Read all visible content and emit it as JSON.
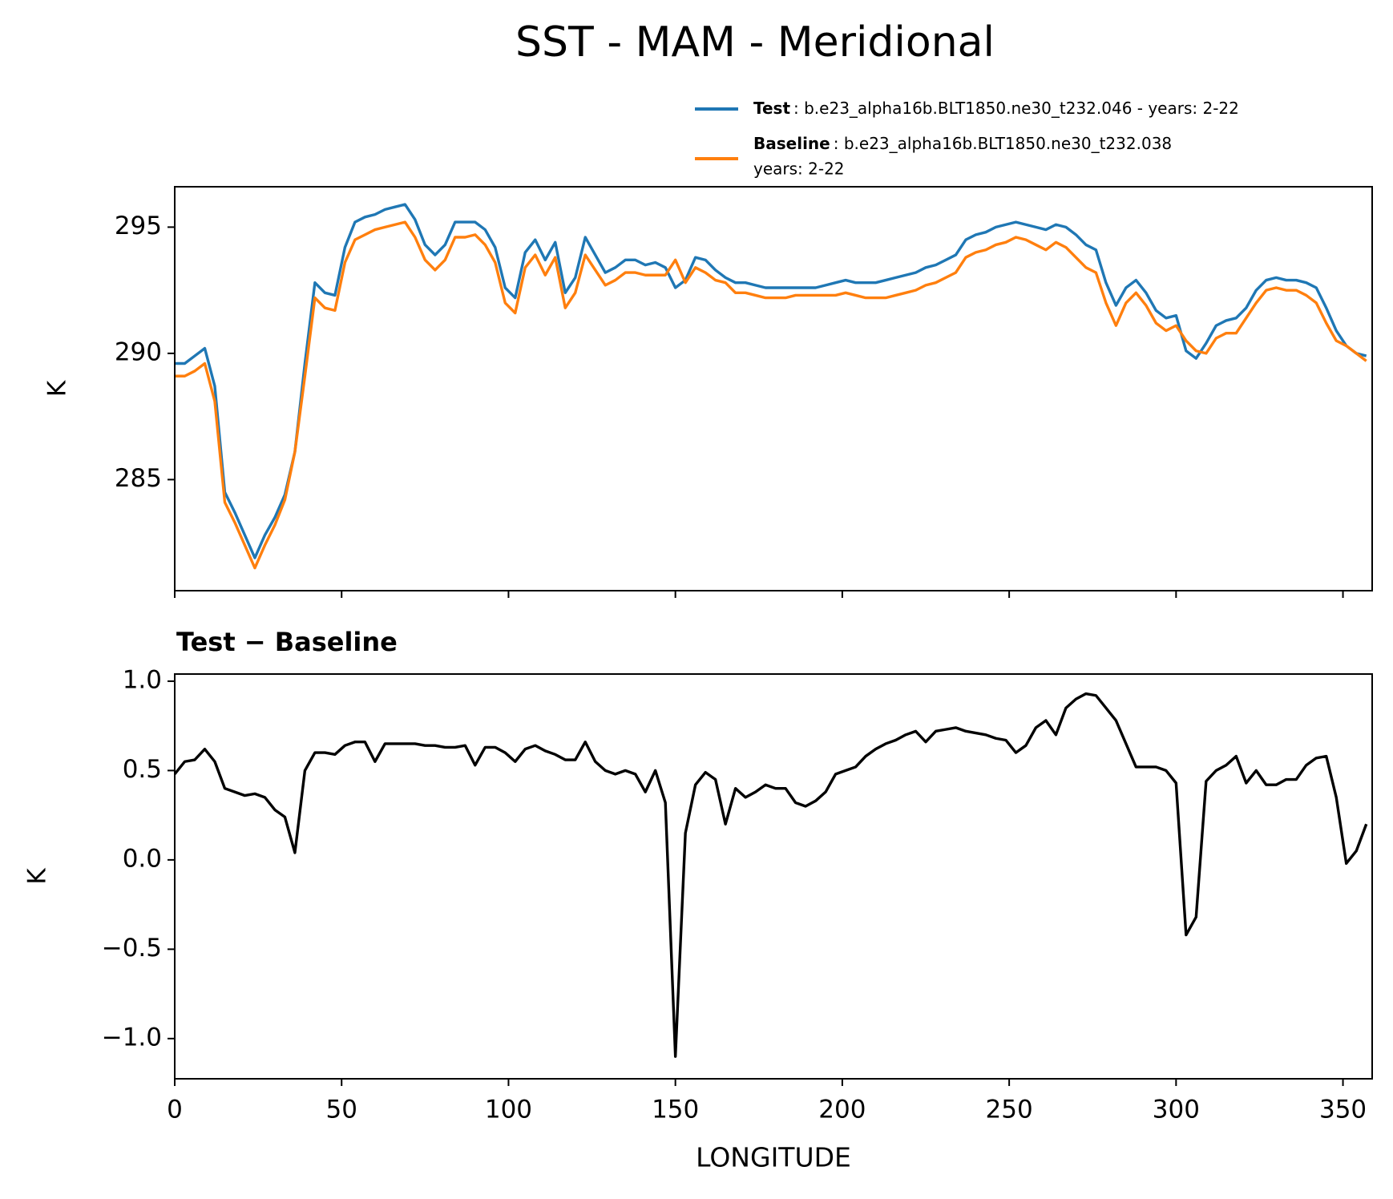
{
  "chart_data": [
    {
      "type": "line",
      "title": "SST - MAM - Meridional",
      "ylabel": "K",
      "x": [
        0,
        3,
        6,
        9,
        12,
        15,
        18,
        21,
        24,
        27,
        30,
        33,
        36,
        39,
        42,
        45,
        48,
        51,
        54,
        57,
        60,
        63,
        66,
        69,
        72,
        75,
        78,
        81,
        84,
        87,
        90,
        93,
        96,
        99,
        102,
        105,
        108,
        111,
        114,
        117,
        120,
        123,
        126,
        129,
        132,
        135,
        138,
        141,
        144,
        147,
        150,
        153,
        156,
        159,
        162,
        165,
        168,
        171,
        174,
        177,
        180,
        183,
        186,
        189,
        192,
        195,
        198,
        201,
        204,
        207,
        210,
        213,
        216,
        219,
        222,
        225,
        228,
        231,
        234,
        237,
        240,
        243,
        246,
        249,
        252,
        255,
        258,
        261,
        264,
        267,
        270,
        273,
        276,
        279,
        282,
        285,
        288,
        291,
        294,
        297,
        300,
        303,
        306,
        309,
        312,
        315,
        318,
        321,
        324,
        327,
        330,
        333,
        336,
        339,
        342,
        345,
        348,
        351,
        354,
        357
      ],
      "series": [
        {
          "name": "Test",
          "description": [
            ": b.e23_alpha16b.BLT1850.ne30_t232.046 - years: 2-22"
          ],
          "color": "#1f77b4",
          "values": [
            289.6,
            289.6,
            289.9,
            290.2,
            288.7,
            284.5,
            283.7,
            282.8,
            281.9,
            282.8,
            283.5,
            284.4,
            286.1,
            289.6,
            292.8,
            292.4,
            292.3,
            294.2,
            295.2,
            295.4,
            295.5,
            295.7,
            295.8,
            295.9,
            295.3,
            294.3,
            293.9,
            294.3,
            295.2,
            295.2,
            295.2,
            294.9,
            294.2,
            292.6,
            292.2,
            294.0,
            294.5,
            293.7,
            294.4,
            292.4,
            293.0,
            294.6,
            293.9,
            293.2,
            293.4,
            293.7,
            293.7,
            293.5,
            293.6,
            293.4,
            292.6,
            292.9,
            293.8,
            293.7,
            293.3,
            293.0,
            292.8,
            292.8,
            292.7,
            292.6,
            292.6,
            292.6,
            292.6,
            292.6,
            292.6,
            292.7,
            292.8,
            292.9,
            292.8,
            292.8,
            292.8,
            292.9,
            293.0,
            293.1,
            293.2,
            293.4,
            293.5,
            293.7,
            293.9,
            294.5,
            294.7,
            294.8,
            295.0,
            295.1,
            295.2,
            295.1,
            295.0,
            294.9,
            295.1,
            295.0,
            294.7,
            294.3,
            294.1,
            292.8,
            291.9,
            292.6,
            292.9,
            292.4,
            291.7,
            291.4,
            291.5,
            290.1,
            289.8,
            290.4,
            291.1,
            291.3,
            291.4,
            291.8,
            292.5,
            292.9,
            293.0,
            292.9,
            292.9,
            292.8,
            292.6,
            291.8,
            290.9,
            290.3,
            290.0,
            289.9
          ]
        },
        {
          "name": "Baseline",
          "description": [
            ": b.e23_alpha16b.BLT1850.ne30_t232.038",
            "years: 2-22"
          ],
          "color": "#ff7f0e",
          "values": [
            289.1,
            289.1,
            289.3,
            289.6,
            288.1,
            284.1,
            283.3,
            282.4,
            281.5,
            282.4,
            283.2,
            284.2,
            286.1,
            289.1,
            292.2,
            291.8,
            291.7,
            293.6,
            294.5,
            294.7,
            294.9,
            295.0,
            295.1,
            295.2,
            294.6,
            293.7,
            293.3,
            293.7,
            294.6,
            294.6,
            294.7,
            294.3,
            293.6,
            292.0,
            291.6,
            293.4,
            293.9,
            293.1,
            293.8,
            291.8,
            292.4,
            293.9,
            293.3,
            292.7,
            292.9,
            293.2,
            293.2,
            293.1,
            293.1,
            293.1,
            293.7,
            292.8,
            293.4,
            293.2,
            292.9,
            292.8,
            292.4,
            292.4,
            292.3,
            292.2,
            292.2,
            292.2,
            292.3,
            292.3,
            292.3,
            292.3,
            292.3,
            292.4,
            292.3,
            292.2,
            292.2,
            292.2,
            292.3,
            292.4,
            292.5,
            292.7,
            292.8,
            293.0,
            293.2,
            293.8,
            294.0,
            294.1,
            294.3,
            294.4,
            294.6,
            294.5,
            294.3,
            294.1,
            294.4,
            294.2,
            293.8,
            293.4,
            293.2,
            292.0,
            291.1,
            292.0,
            292.4,
            291.9,
            291.2,
            290.9,
            291.1,
            290.5,
            290.1,
            290.0,
            290.6,
            290.8,
            290.8,
            291.4,
            292.0,
            292.5,
            292.6,
            292.5,
            292.5,
            292.3,
            292.0,
            291.2,
            290.5,
            290.3,
            290.0,
            289.7
          ]
        }
      ],
      "xlim": [
        0,
        358.75
      ],
      "xticks": [
        0,
        50,
        100,
        150,
        200,
        250,
        300,
        350
      ],
      "xtick_labels": false,
      "ylim": [
        280.6,
        296.6
      ],
      "yticks": [
        285,
        290,
        295
      ],
      "legend": "upper right"
    },
    {
      "type": "line",
      "title": "Test − Baseline",
      "xlabel": "LONGITUDE",
      "ylabel": "K",
      "x": [
        0,
        3,
        6,
        9,
        12,
        15,
        18,
        21,
        24,
        27,
        30,
        33,
        36,
        39,
        42,
        45,
        48,
        51,
        54,
        57,
        60,
        63,
        66,
        69,
        72,
        75,
        78,
        81,
        84,
        87,
        90,
        93,
        96,
        99,
        102,
        105,
        108,
        111,
        114,
        117,
        120,
        123,
        126,
        129,
        132,
        135,
        138,
        141,
        144,
        147,
        150,
        153,
        156,
        159,
        162,
        165,
        168,
        171,
        174,
        177,
        180,
        183,
        186,
        189,
        192,
        195,
        198,
        201,
        204,
        207,
        210,
        213,
        216,
        219,
        222,
        225,
        228,
        231,
        234,
        237,
        240,
        243,
        246,
        249,
        252,
        255,
        258,
        261,
        264,
        267,
        270,
        273,
        276,
        279,
        282,
        285,
        288,
        291,
        294,
        297,
        300,
        303,
        306,
        309,
        312,
        315,
        318,
        321,
        324,
        327,
        330,
        333,
        336,
        339,
        342,
        345,
        348,
        351,
        354,
        357
      ],
      "series": [
        {
          "color": "#000000",
          "values": [
            0.48,
            0.55,
            0.56,
            0.62,
            0.55,
            0.4,
            0.38,
            0.36,
            0.37,
            0.35,
            0.28,
            0.24,
            0.04,
            0.5,
            0.6,
            0.6,
            0.59,
            0.64,
            0.66,
            0.66,
            0.55,
            0.65,
            0.65,
            0.65,
            0.65,
            0.64,
            0.64,
            0.63,
            0.63,
            0.64,
            0.53,
            0.63,
            0.63,
            0.6,
            0.55,
            0.62,
            0.64,
            0.61,
            0.59,
            0.56,
            0.56,
            0.66,
            0.55,
            0.5,
            0.48,
            0.5,
            0.48,
            0.38,
            0.5,
            0.32,
            -1.1,
            0.15,
            0.42,
            0.49,
            0.45,
            0.2,
            0.4,
            0.35,
            0.38,
            0.42,
            0.4,
            0.4,
            0.32,
            0.3,
            0.33,
            0.38,
            0.48,
            0.5,
            0.52,
            0.58,
            0.62,
            0.65,
            0.67,
            0.7,
            0.72,
            0.66,
            0.72,
            0.73,
            0.74,
            0.72,
            0.71,
            0.7,
            0.68,
            0.67,
            0.6,
            0.64,
            0.74,
            0.78,
            0.7,
            0.85,
            0.9,
            0.93,
            0.92,
            0.85,
            0.78,
            0.65,
            0.52,
            0.52,
            0.52,
            0.5,
            0.43,
            -0.42,
            -0.32,
            0.44,
            0.5,
            0.53,
            0.58,
            0.43,
            0.5,
            0.42,
            0.42,
            0.45,
            0.45,
            0.53,
            0.57,
            0.58,
            0.35,
            -0.02,
            0.05,
            0.2
          ]
        }
      ],
      "xlim": [
        0,
        358.75
      ],
      "xticks": [
        0,
        50,
        100,
        150,
        200,
        250,
        300,
        350
      ],
      "xtick_labels": true,
      "ylim": [
        -1.225,
        1.04
      ],
      "yticks": [
        {
          "value": -1,
          "label": "−1.0"
        },
        {
          "value": -0.5,
          "label": "−0.5"
        },
        {
          "value": 0,
          "label": "0.0"
        },
        0.5,
        {
          "value": 1,
          "label": "1.0"
        }
      ]
    }
  ]
}
